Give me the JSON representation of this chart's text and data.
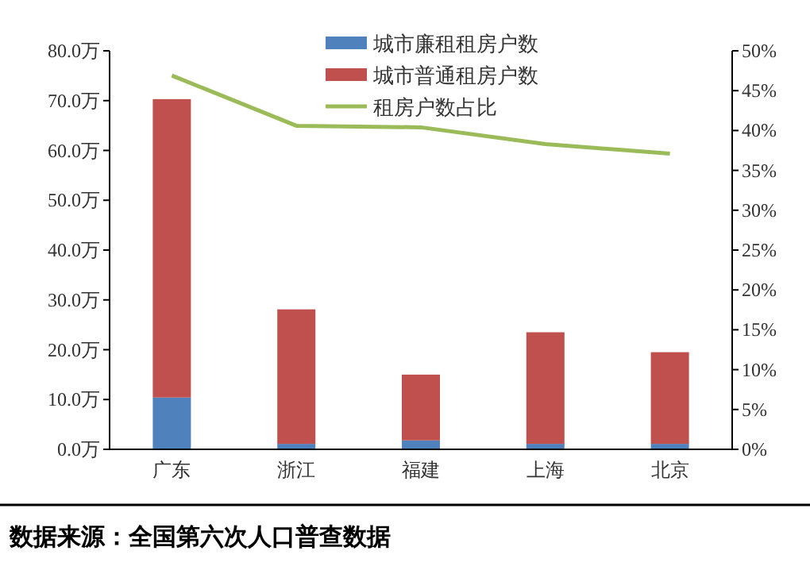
{
  "chart_data": {
    "type": "bar",
    "stacked": true,
    "categories": [
      "广东",
      "浙江",
      "福建",
      "上海",
      "北京"
    ],
    "series": [
      {
        "name": "城市廉租租房户数",
        "color": "#4f81bd",
        "values": [
          10.4,
          1.1,
          1.8,
          1.1,
          1.1
        ]
      },
      {
        "name": "城市普通租房户数",
        "color": "#c0504d",
        "values": [
          59.9,
          27.0,
          13.2,
          22.4,
          18.4
        ]
      },
      {
        "name": "租房户数占比",
        "type": "line",
        "axis": "y2",
        "color": "#9bbb59",
        "values": [
          46.9,
          40.6,
          40.4,
          38.3,
          37.1
        ]
      }
    ],
    "ylim": [
      0,
      80
    ],
    "yticks": [
      {
        "value": 0,
        "label": "0.0万"
      },
      {
        "value": 10,
        "label": "10.0万"
      },
      {
        "value": 20,
        "label": "20.0万"
      },
      {
        "value": 30,
        "label": "30.0万"
      },
      {
        "value": 40,
        "label": "40.0万"
      },
      {
        "value": 50,
        "label": "50.0万"
      },
      {
        "value": 60,
        "label": "60.0万"
      },
      {
        "value": 70,
        "label": "70.0万"
      },
      {
        "value": 80,
        "label": "80.0万"
      }
    ],
    "y2lim": [
      0,
      50
    ],
    "y2ticks": [
      {
        "value": 0,
        "label": "0%"
      },
      {
        "value": 5,
        "label": "5%"
      },
      {
        "value": 10,
        "label": "10%"
      },
      {
        "value": 15,
        "label": "15%"
      },
      {
        "value": 20,
        "label": "20%"
      },
      {
        "value": 25,
        "label": "25%"
      },
      {
        "value": 30,
        "label": "30%"
      },
      {
        "value": 35,
        "label": "35%"
      },
      {
        "value": 40,
        "label": "40%"
      },
      {
        "value": 45,
        "label": "45%"
      },
      {
        "value": 50,
        "label": "50%"
      }
    ],
    "legend": "top",
    "grid": false,
    "annotations": [
      "数据来源：全国第六次人口普查数据"
    ]
  }
}
